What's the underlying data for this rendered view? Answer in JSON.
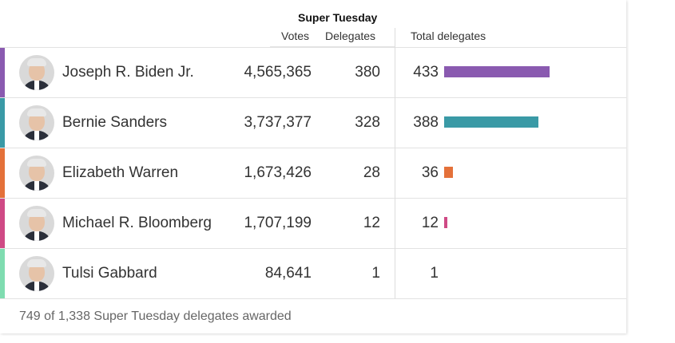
{
  "table": {
    "group_header": "Super Tuesday",
    "col_votes": "Votes",
    "col_delegates": "Delegates",
    "col_total": "Total delegates",
    "max_total": 433,
    "rows": [
      {
        "name": "Joseph R. Biden Jr.",
        "votes": "4,565,365",
        "delegates": "380",
        "total": "433",
        "total_value": 433,
        "color": "#8a5ab0"
      },
      {
        "name": "Bernie Sanders",
        "votes": "3,737,377",
        "delegates": "328",
        "total": "388",
        "total_value": 388,
        "color": "#3a9aa6"
      },
      {
        "name": "Elizabeth Warren",
        "votes": "1,673,426",
        "delegates": "28",
        "total": "36",
        "total_value": 36,
        "color": "#e4713a"
      },
      {
        "name": "Michael R. Bloomberg",
        "votes": "1,707,199",
        "delegates": "12",
        "total": "12",
        "total_value": 12,
        "color": "#cf4a85"
      },
      {
        "name": "Tulsi Gabbard",
        "votes": "84,641",
        "delegates": "1",
        "total": "1",
        "total_value": 1,
        "color": "#7fdcb0"
      }
    ],
    "footer": "749 of 1,338 Super Tuesday delegates awarded"
  }
}
